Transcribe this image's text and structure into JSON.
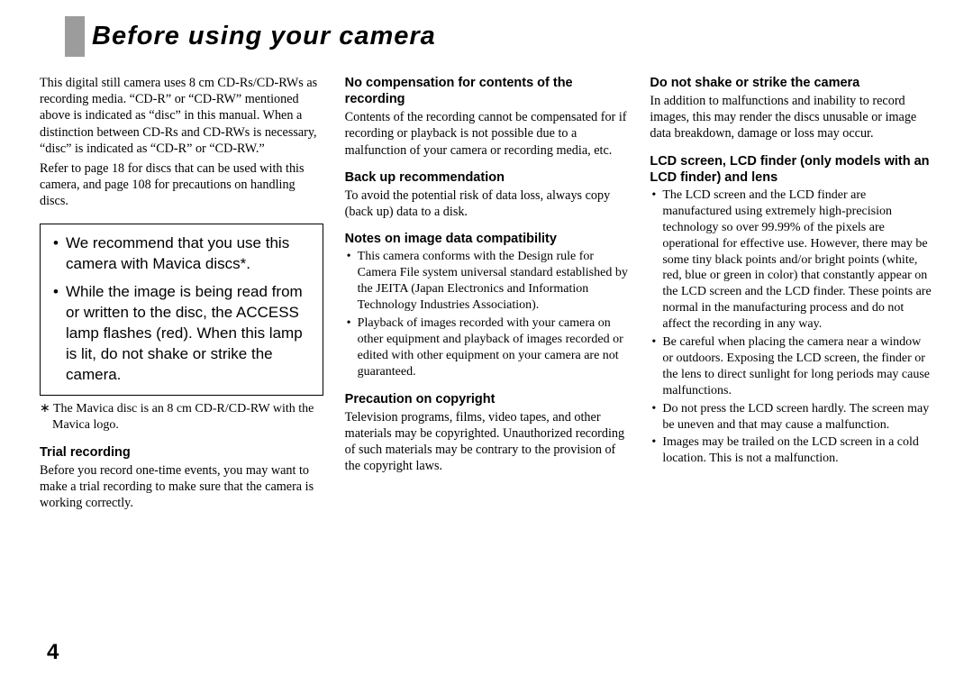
{
  "page_number": "4",
  "title": "Before using your camera",
  "col1": {
    "intro1": "This digital still camera uses 8 cm CD-Rs/CD-RWs as recording media. “CD-R” or “CD-RW” mentioned above is indicated as “disc” in this manual. When a distinction between CD-Rs and CD-RWs is necessary, “disc” is indicated as “CD-R” or “CD-RW.”",
    "intro2": "Refer to page 18 for discs that can be used with this camera, and page 108 for precautions on handling discs.",
    "box_item1": "We recommend that you use this camera with Mavica discs*.",
    "box_item2": "While the image is being read from or written to the disc, the ACCESS lamp flashes (red). When this lamp is lit, do not shake or strike the camera.",
    "footnote": "∗ The Mavica disc is an 8 cm CD-R/CD-RW with the Mavica logo.",
    "trial_heading": "Trial recording",
    "trial_body": "Before you record one-time events, you may want to make a trial recording to make sure that the camera is working correctly."
  },
  "col2": {
    "nocomp_heading": "No compensation for contents of the recording",
    "nocomp_body": "Contents of the recording cannot be compensated for if recording or playback is not possible due to a malfunction of your camera or recording media, etc.",
    "backup_heading": "Back up recommendation",
    "backup_body": "To avoid the potential risk of data loss, always copy (back up) data to a disk.",
    "compat_heading": "Notes on image data compatibility",
    "compat_b1": "This camera conforms with the Design rule for Camera File system universal standard established by the JEITA (Japan Electronics and Information Technology Industries Association).",
    "compat_b2": "Playback of images recorded with your camera on other equipment and playback of images recorded or edited with other equipment on your camera are not guaranteed.",
    "copyright_heading": "Precaution on copyright",
    "copyright_body": "Television programs, films, video tapes, and other materials may be copyrighted. Unauthorized recording of such materials may be contrary to the provision of the copyright laws."
  },
  "col3": {
    "shake_heading": "Do not shake or strike the camera",
    "shake_body": "In addition to malfunctions and inability to record images, this may render the discs unusable or image data breakdown, damage or loss may occur.",
    "lcd_heading": "LCD screen, LCD finder (only models with an LCD finder) and lens",
    "lcd_b1": "The LCD screen and the LCD finder are manufactured using extremely high-precision technology so over 99.99% of the pixels are operational for effective use. However, there may be some tiny black points and/or bright points (white, red, blue or green in color) that constantly appear on the LCD screen and the LCD finder. These points are normal in the manufacturing process and do not affect the recording in any way.",
    "lcd_b2": "Be careful when placing the camera near a window or outdoors. Exposing the LCD screen, the finder or the lens to direct sunlight for long periods may cause malfunctions.",
    "lcd_b3": "Do not press the LCD screen hardly. The screen may be uneven and that may cause a malfunction.",
    "lcd_b4": "Images may be trailed on the LCD screen in a cold location. This is not a malfunction."
  }
}
